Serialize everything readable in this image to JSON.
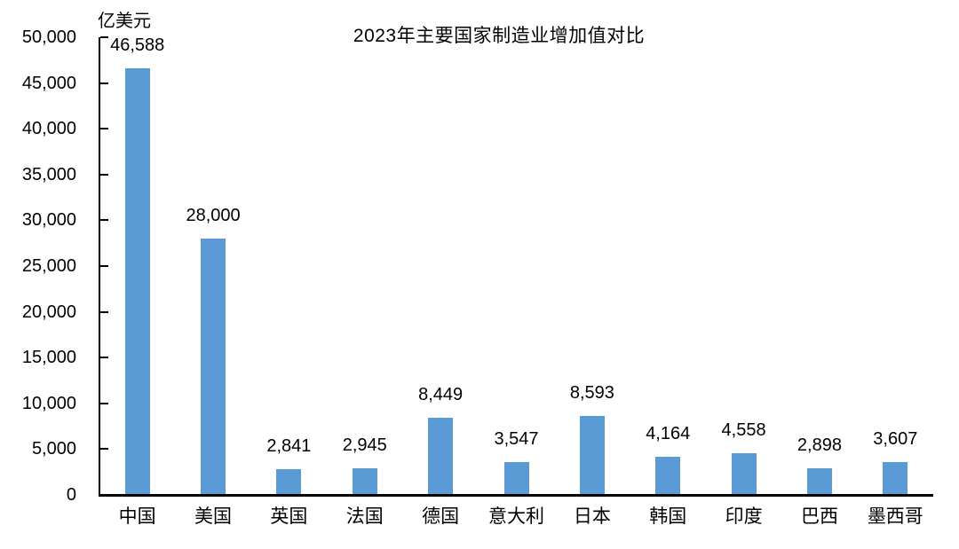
{
  "chart_data": {
    "type": "bar",
    "title": "2023年主要国家制造业增加值对比",
    "unit_label": "亿美元",
    "categories": [
      "中国",
      "美国",
      "英国",
      "法国",
      "德国",
      "意大利",
      "日本",
      "韩国",
      "印度",
      "巴西",
      "墨西哥"
    ],
    "values": [
      46588,
      28000,
      2841,
      2945,
      8449,
      3547,
      8593,
      4164,
      4558,
      2898,
      3607
    ],
    "data_labels": [
      "46,588",
      "28,000",
      "2,841",
      "2,945",
      "8,449",
      "3,547",
      "8,593",
      "4,164",
      "4,558",
      "2,898",
      "3,607"
    ],
    "ylabel": "",
    "xlabel": "",
    "ylim": [
      0,
      50000
    ],
    "ytick_interval": 5000,
    "ytick_labels": [
      "0",
      "5,000",
      "10,000",
      "15,000",
      "20,000",
      "25,000",
      "30,000",
      "35,000",
      "40,000",
      "45,000",
      "50,000"
    ],
    "bar_color": "#5B9BD5",
    "axis_color": "#000000",
    "text_color": "#000000",
    "grid": false,
    "legend_position": "none"
  }
}
